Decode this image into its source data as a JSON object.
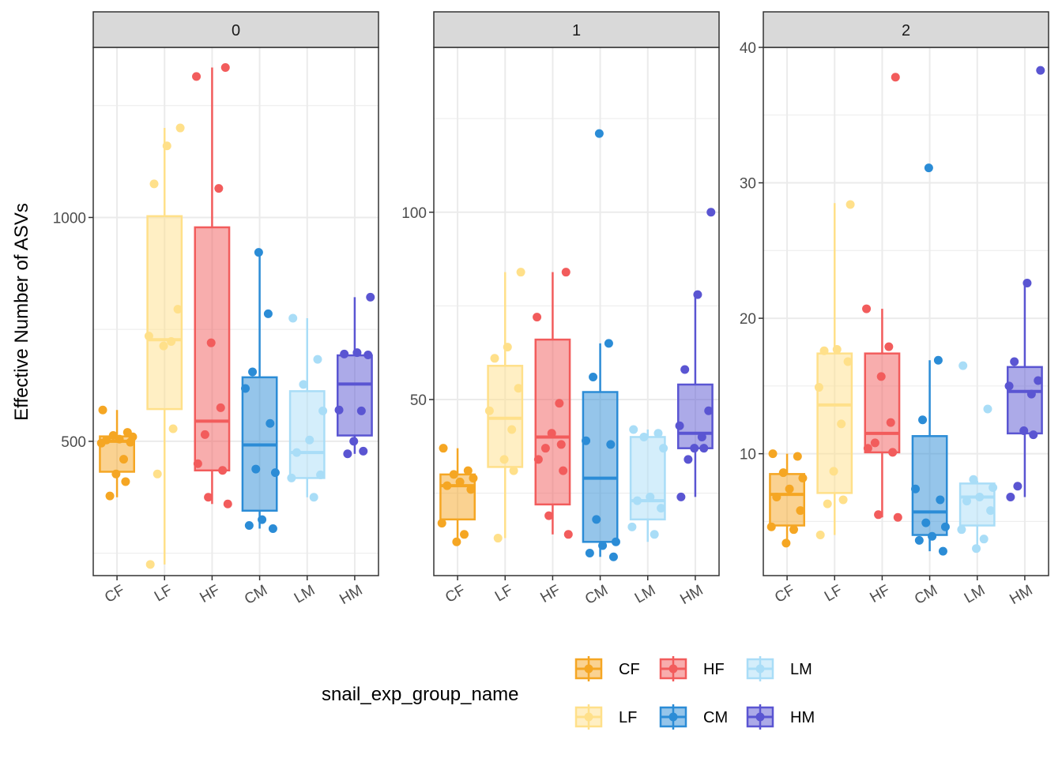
{
  "chart_data": {
    "type": "boxplot",
    "ylabel": "Effective Number of ASVs",
    "xlabel": "",
    "categories": [
      "CF",
      "LF",
      "HF",
      "CM",
      "LM",
      "HM"
    ],
    "colors": {
      "CF": "#F5A623",
      "LF": "#FFE08A",
      "HF": "#F25C5C",
      "CM": "#2B8CD6",
      "LM": "#A9DDF7",
      "HM": "#5A55D2"
    },
    "legend": {
      "title": "snail_exp_group_name",
      "position": "bottom",
      "rows": [
        [
          "CF",
          "HF",
          "LM"
        ],
        [
          "LF",
          "CM",
          "HM"
        ]
      ]
    },
    "panels": [
      {
        "strip": "0",
        "ylim": [
          200,
          1380
        ],
        "yticks": [
          500,
          1000
        ],
        "groups": [
          {
            "name": "CF",
            "q1": 432,
            "median": 500,
            "q3": 511,
            "lower": 375,
            "upper": 570,
            "points": [
              570,
              520,
              513,
              510,
              505,
              503,
              498,
              496,
              460,
              427,
              410,
              378
            ]
          },
          {
            "name": "LF",
            "q1": 572,
            "median": 727,
            "q3": 1003,
            "lower": 225,
            "upper": 1200,
            "points": [
              1200,
              1160,
              1075,
              795,
              735,
              723,
              713,
              528,
              427,
              225
            ]
          },
          {
            "name": "HF",
            "q1": 435,
            "median": 545,
            "q3": 978,
            "lower": 360,
            "upper": 1335,
            "points": [
              1335,
              1315,
              1065,
              720,
              575,
              515,
              450,
              435,
              375,
              360
            ]
          },
          {
            "name": "CM",
            "q1": 345,
            "median": 492,
            "q3": 643,
            "lower": 305,
            "upper": 922,
            "points": [
              922,
              785,
              655,
              618,
              540,
              438,
              430,
              325,
              312,
              305
            ]
          },
          {
            "name": "LM",
            "q1": 418,
            "median": 475,
            "q3": 612,
            "lower": 375,
            "upper": 775,
            "points": [
              775,
              683,
              627,
              568,
              503,
              475,
              425,
              418,
              375
            ]
          },
          {
            "name": "HM",
            "q1": 513,
            "median": 628,
            "q3": 692,
            "lower": 472,
            "upper": 822,
            "points": [
              822,
              698,
              695,
              693,
              570,
              568,
              500,
              478,
              472
            ]
          }
        ]
      },
      {
        "strip": "1",
        "ylim": [
          3,
          144
        ],
        "yticks": [
          50,
          100
        ],
        "groups": [
          {
            "name": "CF",
            "q1": 18,
            "median": 27,
            "q3": 30,
            "lower": 12,
            "upper": 37,
            "points": [
              37,
              31,
              30,
              29,
              28,
              27,
              26,
              17,
              14,
              12
            ]
          },
          {
            "name": "LF",
            "q1": 32,
            "median": 45,
            "q3": 59,
            "lower": 13,
            "upper": 84,
            "points": [
              84,
              64,
              61,
              53,
              47,
              42,
              34,
              31,
              13
            ]
          },
          {
            "name": "HF",
            "q1": 22,
            "median": 40,
            "q3": 66,
            "lower": 14,
            "upper": 84,
            "points": [
              84,
              72,
              49,
              41,
              38,
              37,
              34,
              31,
              19,
              14
            ]
          },
          {
            "name": "CM",
            "q1": 12,
            "median": 29,
            "q3": 52,
            "lower": 8,
            "upper": 65,
            "points": [
              121,
              65,
              56,
              39,
              38,
              18,
              12,
              11,
              9,
              8
            ]
          },
          {
            "name": "LM",
            "q1": 18,
            "median": 23,
            "q3": 40,
            "lower": 12,
            "upper": 42,
            "points": [
              42,
              41,
              40,
              37,
              24,
              23,
              21,
              16,
              14
            ]
          },
          {
            "name": "HM",
            "q1": 37,
            "median": 41,
            "q3": 54,
            "lower": 24,
            "upper": 78,
            "points": [
              100,
              78,
              58,
              47,
              43,
              40,
              37,
              37,
              34,
              24
            ]
          }
        ]
      },
      {
        "strip": "2",
        "ylim": [
          1,
          40
        ],
        "yticks": [
          10,
          20,
          30,
          40
        ],
        "groups": [
          {
            "name": "CF",
            "q1": 4.7,
            "median": 7.0,
            "q3": 8.5,
            "lower": 3.4,
            "upper": 10,
            "points": [
              10,
              9.8,
              8.6,
              8.2,
              7.4,
              6.8,
              5.8,
              4.6,
              4.4,
              3.4
            ]
          },
          {
            "name": "LF",
            "q1": 7.1,
            "median": 13.6,
            "q3": 17.4,
            "lower": 4.0,
            "upper": 28.5,
            "points": [
              28.4,
              17.7,
              17.6,
              16.8,
              14.9,
              12.2,
              8.7,
              6.6,
              6.3,
              4.0
            ]
          },
          {
            "name": "HF",
            "q1": 10.1,
            "median": 11.5,
            "q3": 17.4,
            "lower": 5.3,
            "upper": 20.7,
            "points": [
              37.8,
              20.7,
              17.9,
              15.7,
              12.3,
              10.8,
              10.4,
              10.1,
              5.5,
              5.3
            ]
          },
          {
            "name": "CM",
            "q1": 4.0,
            "median": 5.7,
            "q3": 11.3,
            "lower": 2.8,
            "upper": 16.9,
            "points": [
              31.1,
              16.9,
              12.5,
              7.4,
              6.6,
              4.9,
              4.6,
              3.9,
              3.6,
              2.8
            ]
          },
          {
            "name": "LM",
            "q1": 4.7,
            "median": 6.8,
            "q3": 7.8,
            "lower": 3.2,
            "upper": 8.0,
            "points": [
              16.5,
              13.3,
              8.1,
              7.5,
              6.8,
              6.5,
              5.8,
              4.4,
              3.7,
              3.0
            ]
          },
          {
            "name": "HM",
            "q1": 11.5,
            "median": 14.6,
            "q3": 16.4,
            "lower": 6.8,
            "upper": 22.6,
            "points": [
              38.3,
              22.6,
              16.8,
              15.4,
              15.0,
              14.4,
              11.7,
              11.4,
              7.6,
              6.8
            ]
          }
        ]
      }
    ]
  }
}
